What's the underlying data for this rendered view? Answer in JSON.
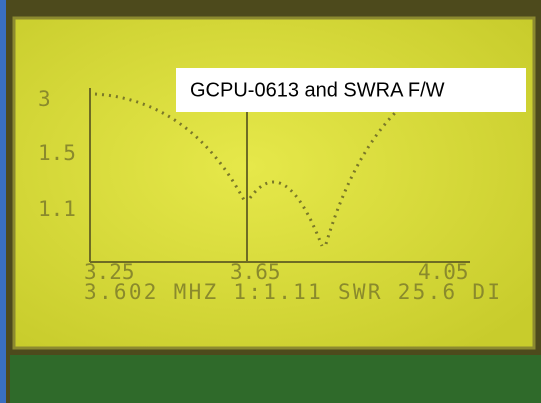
{
  "caption": "GCPU-0613 and SWRA F/W",
  "lcd": {
    "y_labels": [
      "3",
      "1.5",
      "1.1"
    ],
    "x_labels": [
      "3.25",
      "3.65",
      "4.05"
    ],
    "status": "3.602 MHZ 1:1.11 SWR 25.6 DI"
  }
}
